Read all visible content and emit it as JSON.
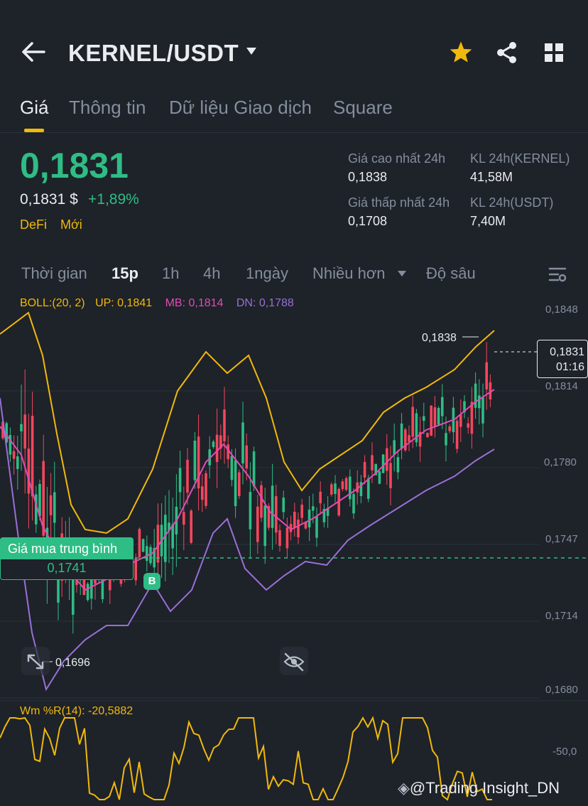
{
  "header": {
    "pair": "KERNEL/USDT",
    "back_icon": "arrow-left-icon",
    "dropdown_icon": "caret-down-icon",
    "star_icon": "star-icon",
    "share_icon": "share-icon",
    "grid_icon": "grid-icon",
    "star_color": "#f0b90b"
  },
  "tabs": [
    {
      "label": "Giá"
    },
    {
      "label": "Thông tin"
    },
    {
      "label": "Dữ liệu Giao dịch"
    },
    {
      "label": "Square"
    }
  ],
  "price": {
    "last": "0,1831",
    "usd": "0,1831 $",
    "change": "+1,89%",
    "tags": [
      "DeFi",
      "Mới"
    ],
    "up_color": "#2ebd85"
  },
  "stats": {
    "high_label": "Giá cao nhất 24h",
    "high_value": "0,1838",
    "low_label": "Giá thấp nhất 24h",
    "low_value": "0,1708",
    "vol_base_label": "KL 24h(KERNEL)",
    "vol_base_value": "41,58M",
    "vol_quote_label": "KL 24h(USDT)",
    "vol_quote_value": "7,40M"
  },
  "intervals": {
    "items": [
      "Thời gian",
      "15p",
      "1h",
      "4h",
      "1ngày",
      "Nhiều hơn",
      "Độ sâu"
    ],
    "active": "15p",
    "settings_icon": "chart-settings-icon"
  },
  "indicator": {
    "boll": "BOLL:(20, 2)",
    "up": "UP: 0,1841",
    "mb": "MB: 0,1814",
    "dn": "DN: 0,1788"
  },
  "chart": {
    "y_ticks": [
      "0,1848",
      "0,1814",
      "0,1780",
      "0,1747",
      "0,1714",
      "0,1680"
    ],
    "high_marker": "0,1838",
    "low_marker": "0,1696",
    "current_price": "0,1831",
    "countdown": "01:16",
    "avg_label": "Giá mua trung bình",
    "avg_value": "0,1741",
    "buy_badge": "B",
    "expand_icon": "expand-icon",
    "hide_icon": "eye-off-icon"
  },
  "oscillator": {
    "label": "Wm %R(14): -20,5882",
    "tick": "-50,0"
  },
  "watermark": "@Trading Insight_DN",
  "colors": {
    "up": "#2ebd85",
    "down": "#f6465d",
    "boll_up": "#f0b90b",
    "boll_mb": "#e44ab5",
    "boll_dn": "#9a6fd6"
  }
}
